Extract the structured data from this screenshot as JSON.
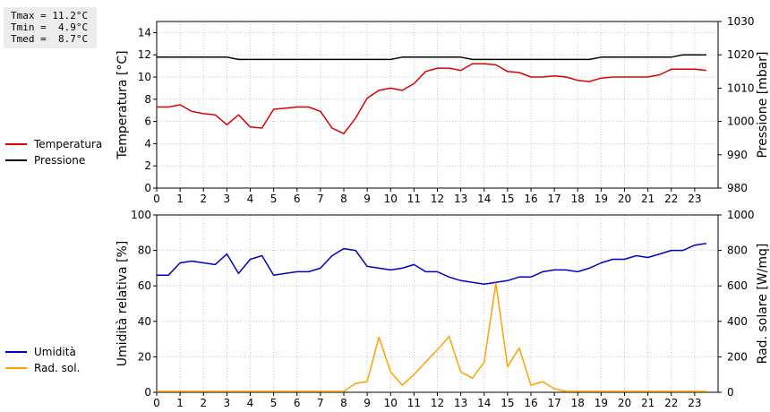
{
  "stats": {
    "tmax": "Tmax = 11.2°C",
    "tmin": "Tmin =  4.9°C",
    "tmed": "Tmed =  8.7°C"
  },
  "colors": {
    "temperature": "#dd0000",
    "pressure": "#000000",
    "humidity": "#0000c0",
    "radiation": "#ffa000",
    "grid": "#c8c8c8"
  },
  "chart_data": [
    {
      "type": "line",
      "xlim": [
        0,
        24
      ],
      "x_ticks": [
        0,
        1,
        2,
        3,
        4,
        5,
        6,
        7,
        8,
        9,
        10,
        11,
        12,
        13,
        14,
        15,
        16,
        17,
        18,
        19,
        20,
        21,
        22,
        23
      ],
      "ylabel_left": "Temperatura [°C]",
      "ylabel_right": "Pressione [mbar]",
      "ylim_left": [
        0,
        15
      ],
      "ylim_right": [
        980,
        1030
      ],
      "yticks_left": [
        0,
        2,
        4,
        6,
        8,
        10,
        12,
        14
      ],
      "yticks_right": [
        980,
        990,
        1000,
        1010,
        1020,
        1030
      ],
      "grid": true,
      "legend_position": "left",
      "series": [
        {
          "name": "Temperatura",
          "axis": "left",
          "x": [
            0,
            0.5,
            1,
            1.5,
            2,
            2.5,
            3,
            3.5,
            4,
            4.5,
            5,
            5.5,
            6,
            6.5,
            7,
            7.5,
            8,
            8.5,
            9,
            9.5,
            10,
            10.5,
            11,
            11.5,
            12,
            12.5,
            13,
            13.5,
            14,
            14.5,
            15,
            15.5,
            16,
            16.5,
            17,
            17.5,
            18,
            18.5,
            19,
            19.5,
            20,
            20.5,
            21,
            21.5,
            22,
            22.5,
            23,
            23.5
          ],
          "values": [
            7.3,
            7.3,
            7.5,
            6.9,
            6.7,
            6.6,
            5.7,
            6.6,
            5.5,
            5.4,
            7.1,
            7.2,
            7.3,
            7.3,
            6.9,
            5.4,
            4.9,
            6.3,
            8.1,
            8.8,
            9.0,
            8.8,
            9.4,
            10.5,
            10.8,
            10.8,
            10.6,
            11.2,
            11.2,
            11.1,
            10.5,
            10.4,
            10.0,
            10.0,
            10.1,
            10.0,
            9.7,
            9.6,
            9.9,
            10.0,
            10.0,
            10.0,
            10.0,
            10.2,
            10.7,
            10.7,
            10.7,
            10.6
          ]
        },
        {
          "name": "Pressione",
          "axis": "right",
          "x": [
            0,
            3,
            3.5,
            10,
            10.5,
            13,
            13.5,
            18.5,
            19,
            22,
            22.5,
            23.5
          ],
          "values": [
            1019.3,
            1019.3,
            1018.6,
            1018.6,
            1019.3,
            1019.3,
            1018.6,
            1018.6,
            1019.3,
            1019.3,
            1020.0,
            1020.0
          ]
        }
      ]
    },
    {
      "type": "line",
      "xlim": [
        0,
        24
      ],
      "x_ticks": [
        0,
        1,
        2,
        3,
        4,
        5,
        6,
        7,
        8,
        9,
        10,
        11,
        12,
        13,
        14,
        15,
        16,
        17,
        18,
        19,
        20,
        21,
        22,
        23
      ],
      "ylabel_left": "Umidità relativa [%]",
      "ylabel_right": "Rad. solare [W/mq]",
      "ylim_left": [
        0,
        100
      ],
      "ylim_right": [
        0,
        1000
      ],
      "yticks_left": [
        0,
        20,
        40,
        60,
        80,
        100
      ],
      "yticks_right": [
        0,
        200,
        400,
        600,
        800,
        1000
      ],
      "grid": true,
      "legend_position": "left",
      "series": [
        {
          "name": "Umidità",
          "axis": "left",
          "x": [
            0,
            0.5,
            1,
            1.5,
            2,
            2.5,
            3,
            3.5,
            4,
            4.5,
            5,
            5.5,
            6,
            6.5,
            7,
            7.5,
            8,
            8.5,
            9,
            9.5,
            10,
            10.5,
            11,
            11.5,
            12,
            12.5,
            13,
            13.5,
            14,
            14.5,
            15,
            15.5,
            16,
            16.5,
            17,
            17.5,
            18,
            18.5,
            19,
            19.5,
            20,
            20.5,
            21,
            21.5,
            22,
            22.5,
            23,
            23.5
          ],
          "values": [
            66,
            66,
            73,
            74,
            73,
            72,
            78,
            67,
            75,
            77,
            66,
            67,
            68,
            68,
            70,
            77,
            81,
            80,
            71,
            70,
            69,
            70,
            72,
            68,
            68,
            65,
            63,
            62,
            61,
            62,
            63,
            65,
            65,
            68,
            69,
            69,
            68,
            70,
            73,
            75,
            75,
            77,
            76,
            78,
            80,
            80,
            83,
            84
          ]
        },
        {
          "name": "Rad. sol.",
          "axis": "right",
          "x": [
            0,
            0.5,
            1,
            1.5,
            2,
            2.5,
            3,
            3.5,
            4,
            4.5,
            5,
            5.5,
            6,
            6.5,
            7,
            7.5,
            8,
            8.5,
            9,
            9.5,
            10,
            10.5,
            11,
            11.5,
            12,
            12.5,
            13,
            13.5,
            14,
            14.5,
            15,
            15.5,
            16,
            16.5,
            17,
            17.5,
            18,
            18.5,
            19,
            19.5,
            20,
            20.5,
            21,
            21.5,
            22,
            22.5,
            23,
            23.5
          ],
          "values": [
            5,
            5,
            5,
            5,
            5,
            5,
            5,
            5,
            5,
            5,
            5,
            5,
            5,
            5,
            5,
            5,
            5,
            50,
            60,
            310,
            115,
            40,
            100,
            170,
            240,
            315,
            115,
            80,
            170,
            615,
            145,
            250,
            40,
            60,
            20,
            5,
            5,
            5,
            5,
            5,
            5,
            5,
            5,
            5,
            5,
            5,
            5,
            5
          ]
        }
      ]
    }
  ]
}
